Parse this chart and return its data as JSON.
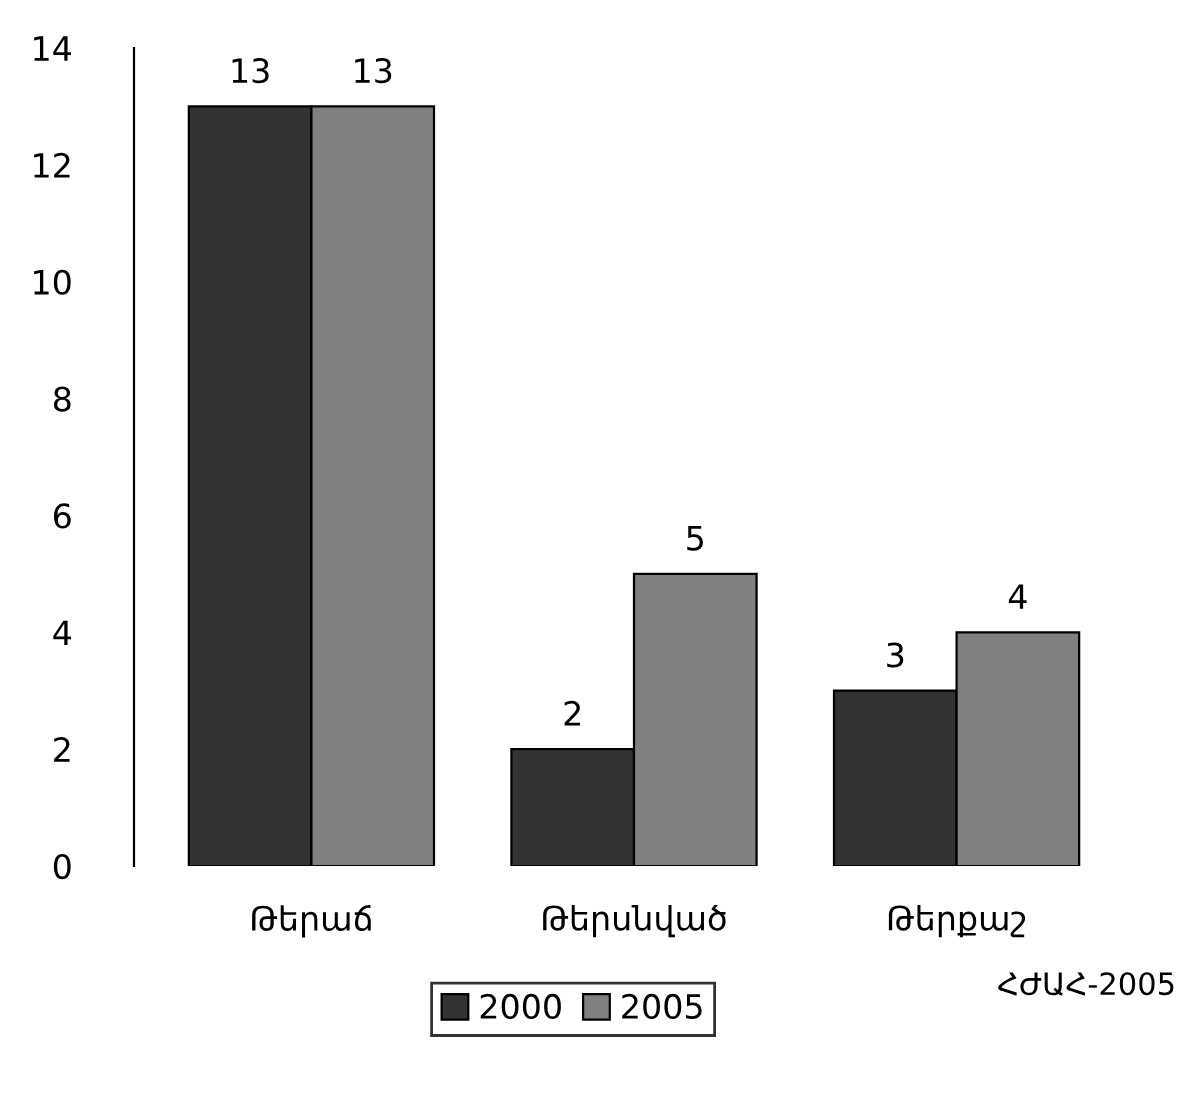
{
  "chart_data": {
    "type": "bar",
    "categories": [
      "Թերաճ",
      "Թերսնված",
      "Թերքաշ"
    ],
    "series": [
      {
        "name": "2000",
        "color": "#333333",
        "values": [
          13,
          2,
          3
        ]
      },
      {
        "name": "2005",
        "color": "#808080",
        "values": [
          13,
          5,
          4
        ]
      }
    ],
    "ylim": [
      0,
      14
    ],
    "yticks": [
      0,
      2,
      4,
      6,
      8,
      10,
      12,
      14
    ],
    "data_labels": true,
    "grid": false,
    "legend": "bottom",
    "annotations": [
      "ՀԺԱՀ-2005"
    ]
  }
}
